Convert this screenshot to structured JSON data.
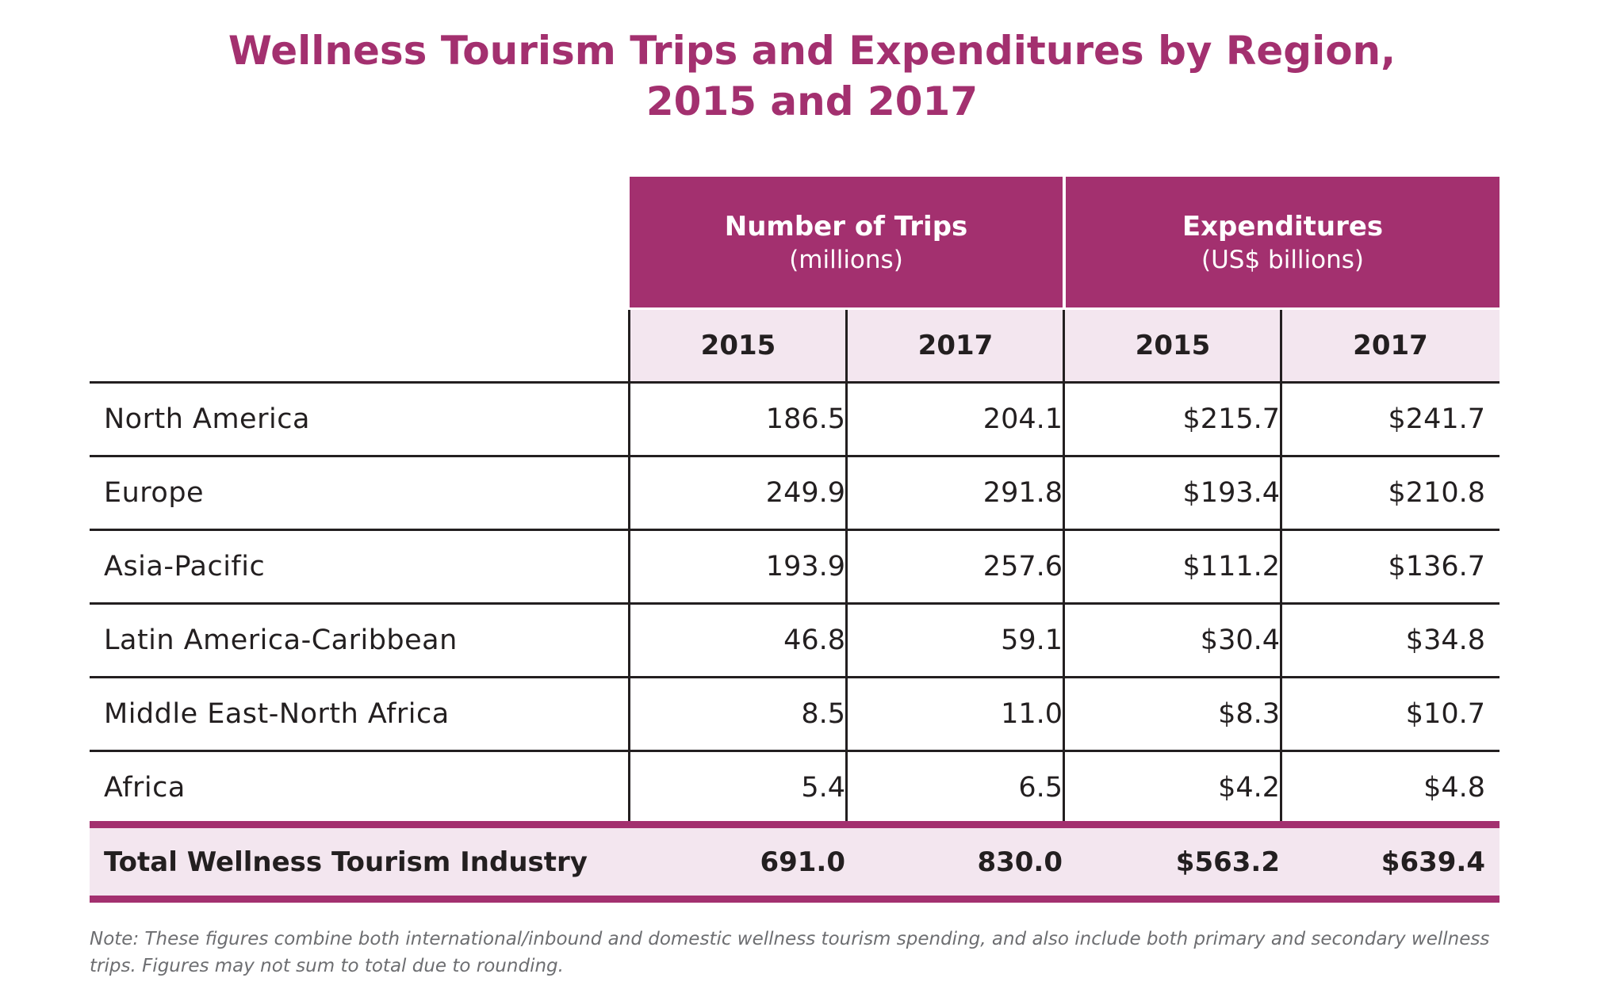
{
  "chart_data": {
    "type": "table",
    "title_lines": [
      "Wellness Tourism Trips and Expenditures by Region,",
      "2015 and 2017"
    ],
    "column_groups": [
      {
        "name": "Number of Trips",
        "unit": "(millions)"
      },
      {
        "name": "Expenditures",
        "unit": "(US$ billions)"
      }
    ],
    "years": [
      "2015",
      "2017",
      "2015",
      "2017"
    ],
    "rows": [
      {
        "region": "North America",
        "values": [
          "186.5",
          "204.1",
          "$215.7",
          "$241.7"
        ]
      },
      {
        "region": "Europe",
        "values": [
          "249.9",
          "291.8",
          "$193.4",
          "$210.8"
        ]
      },
      {
        "region": "Asia-Pacific",
        "values": [
          "193.9",
          "257.6",
          "$111.2",
          "$136.7"
        ]
      },
      {
        "region": "Latin America-Caribbean",
        "values": [
          "46.8",
          "59.1",
          "$30.4",
          "$34.8"
        ]
      },
      {
        "region": "Middle East-North Africa",
        "values": [
          "8.5",
          "11.0",
          "$8.3",
          "$10.7"
        ]
      },
      {
        "region": "Africa",
        "values": [
          "5.4",
          "6.5",
          "$4.2",
          "$4.8"
        ]
      }
    ],
    "total": {
      "label": "Total Wellness Tourism Industry",
      "values": [
        "691.0",
        "830.0",
        "$563.2",
        "$639.4"
      ]
    },
    "note": "Note: These figures combine both international/inbound and domestic wellness tourism spending, and also include both primary and secondary wellness trips. Figures may not sum to total due to rounding."
  },
  "colors": {
    "accent": "#a3306f",
    "tint": "#f3e6ef",
    "text": "#231f20",
    "note": "#6d6e71"
  }
}
